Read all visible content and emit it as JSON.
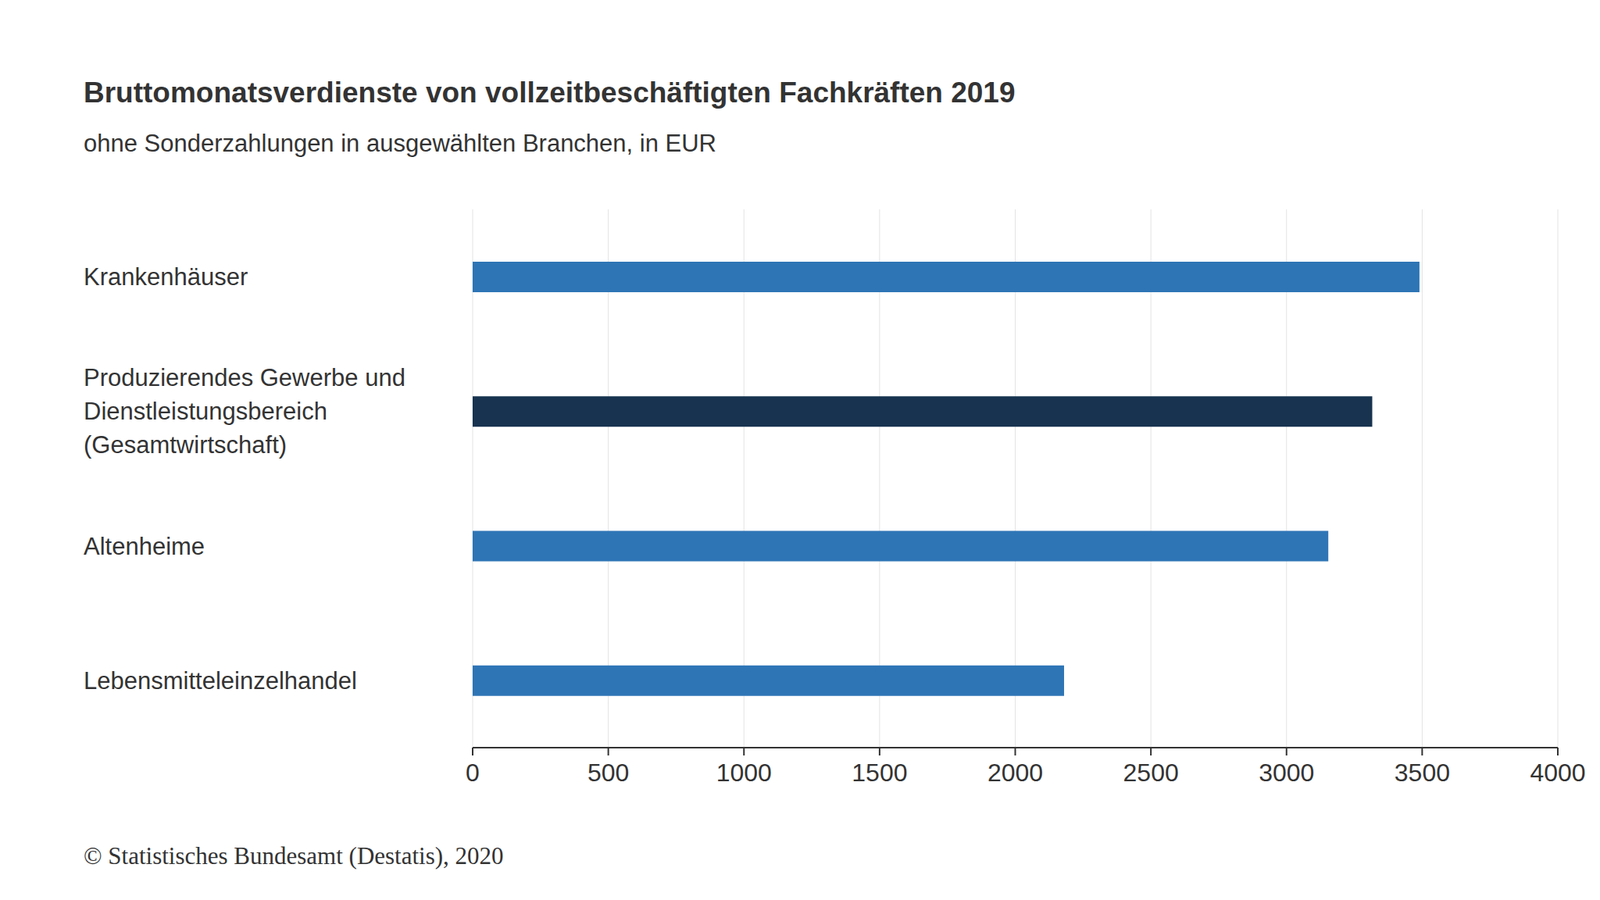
{
  "chart_data": {
    "type": "bar",
    "orientation": "horizontal",
    "title": "Bruttomonatsverdienste von vollzeitbeschäftigten Fachkräften 2019",
    "subtitle": "ohne Sonderzahlungen in ausgewählten Branchen, in EUR",
    "source": "© Statistisches Bundesamt (Destatis), 2020",
    "categories": [
      "Krankenhäuser",
      "Produzierendes Gewerbe und Dienstleistungsbereich (Gesamtwirtschaft)",
      "Altenheime",
      "Lebensmitteleinzelhandel"
    ],
    "values": [
      3490,
      3316,
      3154,
      2180
    ],
    "colors": [
      "#2e75b6",
      "#17334f",
      "#2e75b6",
      "#2e75b6"
    ],
    "xlim": [
      0,
      4000
    ],
    "xticks": [
      0,
      500,
      1000,
      1500,
      2000,
      2500,
      3000,
      3500,
      4000
    ],
    "grid": true
  }
}
